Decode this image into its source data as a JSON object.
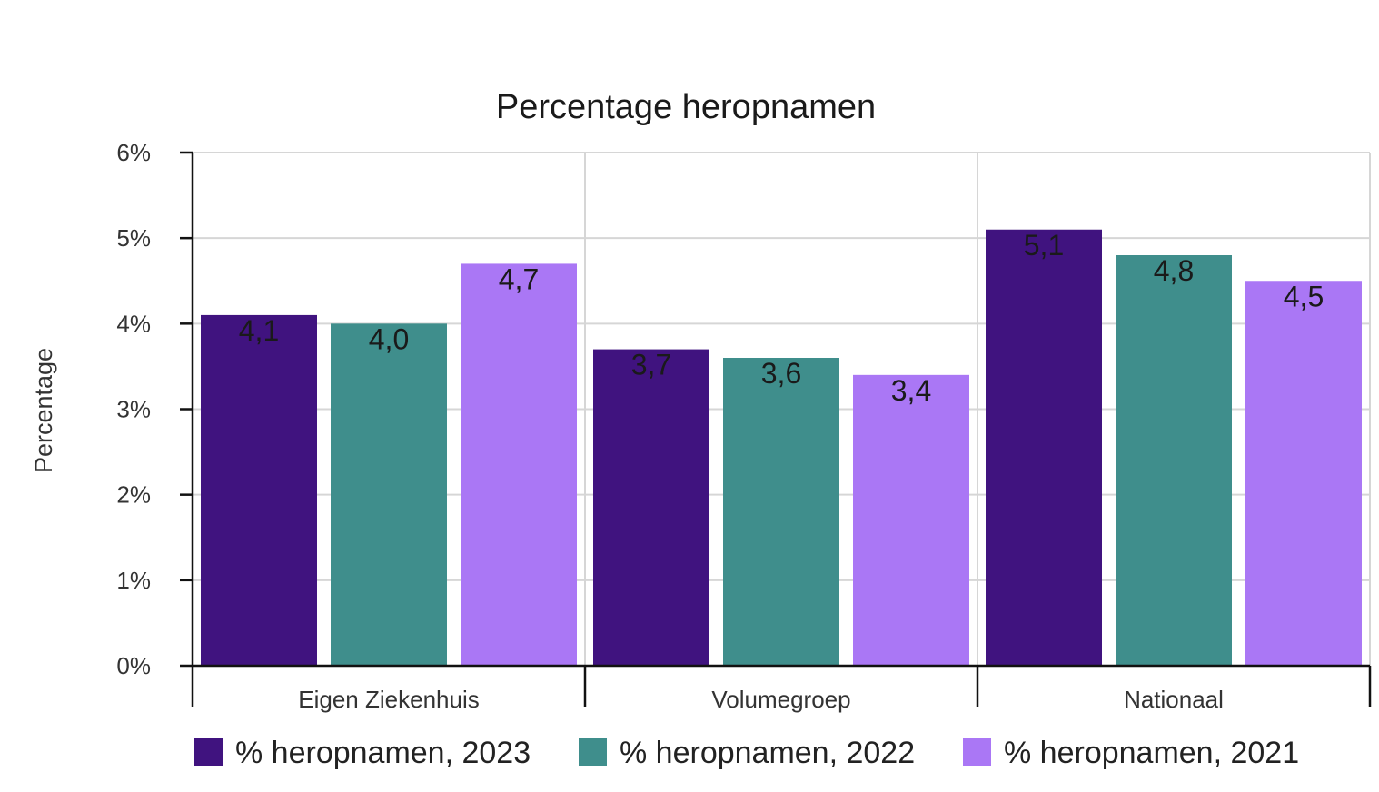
{
  "chart_data": {
    "type": "bar",
    "title": "Percentage heropnamen",
    "xlabel": "",
    "ylabel": "Percentage",
    "categories": [
      "Eigen Ziekenhuis",
      "Volumegroep",
      "Nationaal"
    ],
    "series": [
      {
        "name": "% heropnamen, 2023",
        "values": [
          4.1,
          3.7,
          5.1
        ],
        "labels": [
          "4,1",
          "3,7",
          "5,1"
        ],
        "color": "#40137f"
      },
      {
        "name": "% heropnamen, 2022",
        "values": [
          4.0,
          3.6,
          4.8
        ],
        "labels": [
          "4,0",
          "3,6",
          "4,8"
        ],
        "color": "#3f8e8c"
      },
      {
        "name": "% heropnamen, 2021",
        "values": [
          4.7,
          3.4,
          4.5
        ],
        "labels": [
          "4,7",
          "3,4",
          "4,5"
        ],
        "color": "#aa77f5"
      }
    ],
    "ylim": [
      0,
      6
    ],
    "yticks": [
      "0%",
      "1%",
      "2%",
      "3%",
      "4%",
      "5%",
      "6%"
    ],
    "grid": true,
    "legend_position": "bottom"
  }
}
